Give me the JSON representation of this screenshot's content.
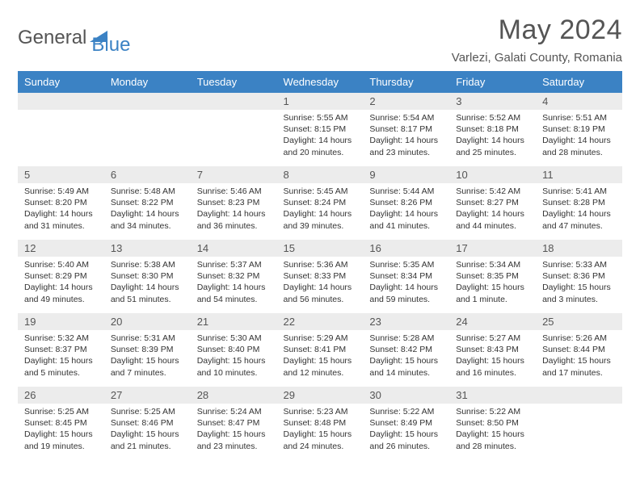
{
  "brand": {
    "text1": "General",
    "text2": "Blue"
  },
  "title": "May 2024",
  "location": "Varlezi, Galati County, Romania",
  "colors": {
    "header_bg": "#3b82c4",
    "header_fg": "#ffffff",
    "daynum_bg": "#ececec",
    "border": "#b8b8b8",
    "text": "#333333",
    "title_color": "#555555"
  },
  "weekdays": [
    "Sunday",
    "Monday",
    "Tuesday",
    "Wednesday",
    "Thursday",
    "Friday",
    "Saturday"
  ],
  "weeks": [
    [
      null,
      null,
      null,
      {
        "d": "1",
        "sr": "5:55 AM",
        "ss": "8:15 PM",
        "dl": "14 hours and 20 minutes."
      },
      {
        "d": "2",
        "sr": "5:54 AM",
        "ss": "8:17 PM",
        "dl": "14 hours and 23 minutes."
      },
      {
        "d": "3",
        "sr": "5:52 AM",
        "ss": "8:18 PM",
        "dl": "14 hours and 25 minutes."
      },
      {
        "d": "4",
        "sr": "5:51 AM",
        "ss": "8:19 PM",
        "dl": "14 hours and 28 minutes."
      }
    ],
    [
      {
        "d": "5",
        "sr": "5:49 AM",
        "ss": "8:20 PM",
        "dl": "14 hours and 31 minutes."
      },
      {
        "d": "6",
        "sr": "5:48 AM",
        "ss": "8:22 PM",
        "dl": "14 hours and 34 minutes."
      },
      {
        "d": "7",
        "sr": "5:46 AM",
        "ss": "8:23 PM",
        "dl": "14 hours and 36 minutes."
      },
      {
        "d": "8",
        "sr": "5:45 AM",
        "ss": "8:24 PM",
        "dl": "14 hours and 39 minutes."
      },
      {
        "d": "9",
        "sr": "5:44 AM",
        "ss": "8:26 PM",
        "dl": "14 hours and 41 minutes."
      },
      {
        "d": "10",
        "sr": "5:42 AM",
        "ss": "8:27 PM",
        "dl": "14 hours and 44 minutes."
      },
      {
        "d": "11",
        "sr": "5:41 AM",
        "ss": "8:28 PM",
        "dl": "14 hours and 47 minutes."
      }
    ],
    [
      {
        "d": "12",
        "sr": "5:40 AM",
        "ss": "8:29 PM",
        "dl": "14 hours and 49 minutes."
      },
      {
        "d": "13",
        "sr": "5:38 AM",
        "ss": "8:30 PM",
        "dl": "14 hours and 51 minutes."
      },
      {
        "d": "14",
        "sr": "5:37 AM",
        "ss": "8:32 PM",
        "dl": "14 hours and 54 minutes."
      },
      {
        "d": "15",
        "sr": "5:36 AM",
        "ss": "8:33 PM",
        "dl": "14 hours and 56 minutes."
      },
      {
        "d": "16",
        "sr": "5:35 AM",
        "ss": "8:34 PM",
        "dl": "14 hours and 59 minutes."
      },
      {
        "d": "17",
        "sr": "5:34 AM",
        "ss": "8:35 PM",
        "dl": "15 hours and 1 minute."
      },
      {
        "d": "18",
        "sr": "5:33 AM",
        "ss": "8:36 PM",
        "dl": "15 hours and 3 minutes."
      }
    ],
    [
      {
        "d": "19",
        "sr": "5:32 AM",
        "ss": "8:37 PM",
        "dl": "15 hours and 5 minutes."
      },
      {
        "d": "20",
        "sr": "5:31 AM",
        "ss": "8:39 PM",
        "dl": "15 hours and 7 minutes."
      },
      {
        "d": "21",
        "sr": "5:30 AM",
        "ss": "8:40 PM",
        "dl": "15 hours and 10 minutes."
      },
      {
        "d": "22",
        "sr": "5:29 AM",
        "ss": "8:41 PM",
        "dl": "15 hours and 12 minutes."
      },
      {
        "d": "23",
        "sr": "5:28 AM",
        "ss": "8:42 PM",
        "dl": "15 hours and 14 minutes."
      },
      {
        "d": "24",
        "sr": "5:27 AM",
        "ss": "8:43 PM",
        "dl": "15 hours and 16 minutes."
      },
      {
        "d": "25",
        "sr": "5:26 AM",
        "ss": "8:44 PM",
        "dl": "15 hours and 17 minutes."
      }
    ],
    [
      {
        "d": "26",
        "sr": "5:25 AM",
        "ss": "8:45 PM",
        "dl": "15 hours and 19 minutes."
      },
      {
        "d": "27",
        "sr": "5:25 AM",
        "ss": "8:46 PM",
        "dl": "15 hours and 21 minutes."
      },
      {
        "d": "28",
        "sr": "5:24 AM",
        "ss": "8:47 PM",
        "dl": "15 hours and 23 minutes."
      },
      {
        "d": "29",
        "sr": "5:23 AM",
        "ss": "8:48 PM",
        "dl": "15 hours and 24 minutes."
      },
      {
        "d": "30",
        "sr": "5:22 AM",
        "ss": "8:49 PM",
        "dl": "15 hours and 26 minutes."
      },
      {
        "d": "31",
        "sr": "5:22 AM",
        "ss": "8:50 PM",
        "dl": "15 hours and 28 minutes."
      },
      null
    ]
  ],
  "labels": {
    "sunrise": "Sunrise:",
    "sunset": "Sunset:",
    "daylight": "Daylight:"
  }
}
